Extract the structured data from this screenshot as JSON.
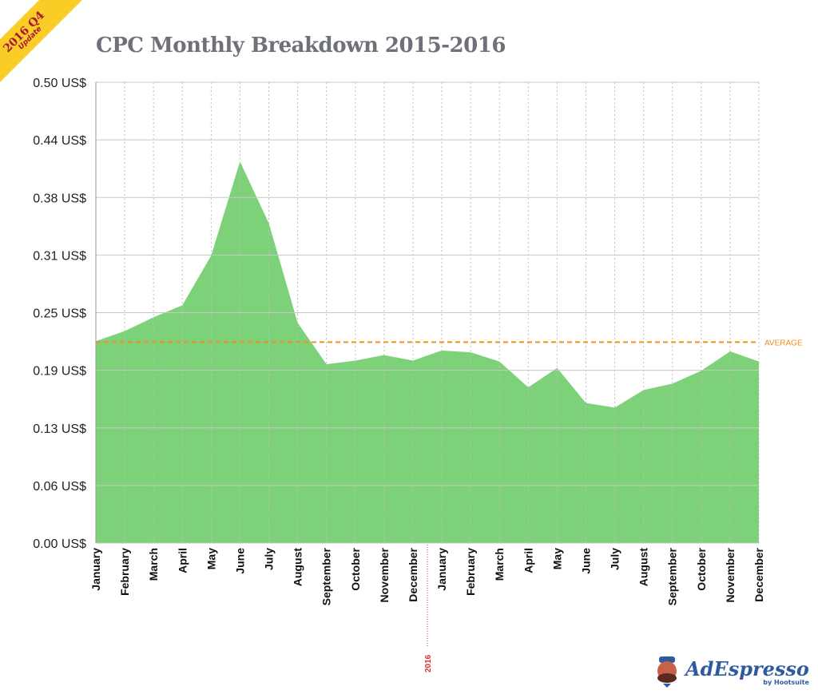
{
  "badge": {
    "line1": "2016 Q4",
    "line2": "Update"
  },
  "logo": {
    "brand": "AdEspresso",
    "sub": "by Hootsuite"
  },
  "chart_data": {
    "type": "area",
    "title": "CPC Monthly Breakdown 2015-2016",
    "xlabel": "",
    "ylabel": "",
    "ylim": [
      0,
      0.5
    ],
    "y_ticks": [
      "0.00 US$",
      "0.06 US$",
      "0.13 US$",
      "0.19 US$",
      "0.25 US$",
      "0.31 US$",
      "0.38 US$",
      "0.44 US$",
      "0.50 US$"
    ],
    "categories": [
      "January",
      "February",
      "March",
      "April",
      "May",
      "June",
      "July",
      "August",
      "September",
      "October",
      "November",
      "December",
      "January",
      "February",
      "March",
      "April",
      "May",
      "June",
      "July",
      "August",
      "September",
      "October",
      "November",
      "December"
    ],
    "values": [
      0.219,
      0.23,
      0.245,
      0.258,
      0.312,
      0.414,
      0.347,
      0.239,
      0.194,
      0.198,
      0.204,
      0.198,
      0.209,
      0.207,
      0.197,
      0.169,
      0.19,
      0.152,
      0.147,
      0.166,
      0.173,
      0.187,
      0.208,
      0.197
    ],
    "average": {
      "value": 0.218,
      "label": "AVERAGE"
    },
    "year_marker": {
      "label": "2016",
      "after_index": 11
    },
    "grid": true,
    "colors": {
      "area": "#7dd279",
      "average": "#f39020",
      "year_marker": "#e0312b",
      "grid": "#bdbdbd"
    }
  }
}
